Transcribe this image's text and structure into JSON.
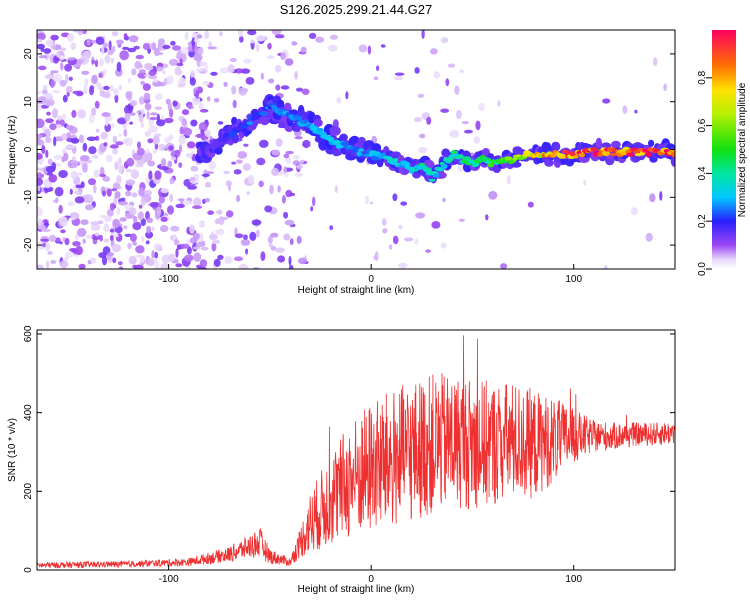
{
  "title": "S126.2025.299.21.44.G27",
  "colors": {
    "spectrogram_low": "#d9c6f5",
    "spectrogram_mid": "#7b2ff0",
    "snr_line": "#ef3030",
    "axis": "#000000"
  },
  "chart_data": [
    {
      "type": "heatmap",
      "title": "S126.2025.299.21.44.G27",
      "xlabel": "Height of straight line (km)",
      "ylabel": "Frequency (Hz)",
      "xlim": [
        -165,
        150
      ],
      "ylim": [
        -25,
        25
      ],
      "xticks": [
        -100,
        0,
        100
      ],
      "xtick_labels": [
        "-100",
        "0",
        "100"
      ],
      "yticks": [
        -20,
        -10,
        0,
        10,
        20
      ],
      "ytick_labels": [
        "-20",
        "-10",
        "0",
        "10",
        "20"
      ],
      "ridge": {
        "description": "frequency of dominant spectral ridge vs height",
        "x": [
          -80,
          -70,
          -60,
          -50,
          -40,
          -30,
          -20,
          -10,
          0,
          10,
          20,
          25,
          30,
          40,
          50,
          55,
          60,
          70,
          80,
          90,
          100,
          110,
          120,
          130,
          140,
          150
        ],
        "y": [
          0,
          3,
          6,
          9,
          7,
          5,
          2,
          0,
          -1,
          -2,
          -4,
          -3,
          -6,
          -1,
          -3,
          -2,
          -3,
          -2,
          -1,
          -1,
          -1,
          -0.5,
          -0.5,
          -0.5,
          -0.5,
          -0.5
        ],
        "amplitude": [
          0.15,
          0.2,
          0.25,
          0.25,
          0.3,
          0.3,
          0.35,
          0.3,
          0.3,
          0.35,
          0.35,
          0.4,
          0.35,
          0.4,
          0.45,
          0.5,
          0.5,
          0.6,
          0.75,
          0.85,
          0.9,
          0.95,
          0.95,
          0.95,
          0.95,
          0.95
        ]
      },
      "colorbar": {
        "label": "Normalized spectral amplitude",
        "range": [
          0.0,
          1.0
        ],
        "ticks": [
          0.0,
          0.2,
          0.4,
          0.6,
          0.8
        ],
        "tick_labels": [
          "0.0",
          "0.2",
          "0.4",
          "0.6",
          "0.8"
        ],
        "colormap": "rainbow"
      }
    },
    {
      "type": "line",
      "xlabel": "Height of straight line (km)",
      "ylabel": "SNR (10 * v/v)",
      "xlim": [
        -165,
        150
      ],
      "ylim": [
        0,
        610
      ],
      "xticks": [
        -100,
        0,
        100
      ],
      "xtick_labels": [
        "-100",
        "0",
        "100"
      ],
      "yticks": [
        0,
        200,
        400,
        600
      ],
      "ytick_labels": [
        "0",
        "200",
        "400",
        "600"
      ],
      "series": [
        {
          "name": "SNR",
          "envelope_x": [
            -165,
            -120,
            -90,
            -70,
            -60,
            -55,
            -50,
            -40,
            -35,
            -30,
            -20,
            -10,
            0,
            10,
            20,
            30,
            40,
            50,
            60,
            70,
            80,
            90,
            100,
            110,
            120,
            130,
            140,
            150
          ],
          "envelope_mean": [
            12,
            15,
            20,
            40,
            60,
            70,
            35,
            20,
            70,
            120,
            180,
            230,
            260,
            280,
            300,
            320,
            330,
            320,
            320,
            330,
            320,
            330,
            340,
            340,
            340,
            345,
            345,
            350
          ],
          "envelope_spread": [
            8,
            8,
            10,
            20,
            30,
            40,
            20,
            10,
            40,
            80,
            120,
            150,
            170,
            180,
            180,
            180,
            170,
            170,
            160,
            150,
            140,
            110,
            70,
            40,
            35,
            30,
            30,
            30
          ]
        }
      ]
    }
  ]
}
